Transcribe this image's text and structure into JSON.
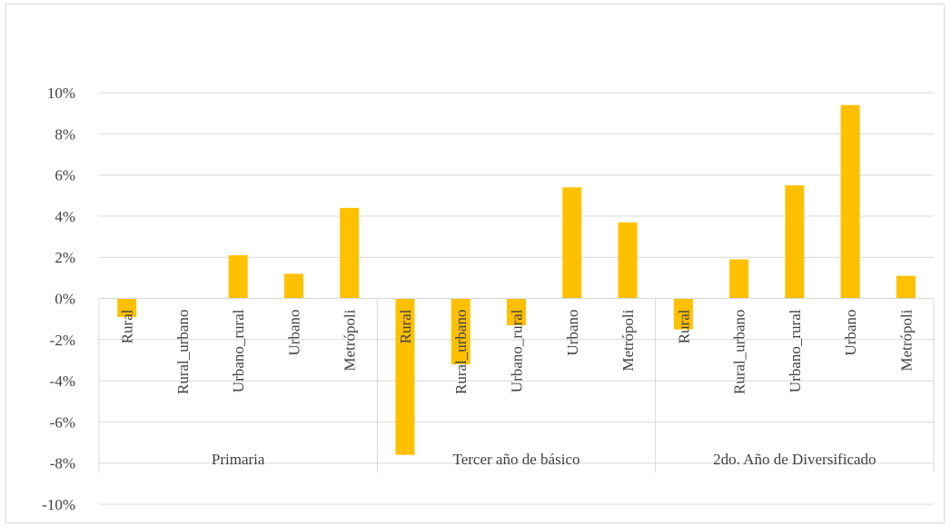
{
  "chart_data": {
    "type": "bar",
    "title": "",
    "xlabel": "",
    "ylabel": "",
    "ylim": [
      -0.1,
      0.1
    ],
    "yticks": [
      0.1,
      0.08,
      0.06,
      0.04,
      0.02,
      0.0,
      -0.02,
      -0.04,
      -0.06,
      -0.08,
      -0.1
    ],
    "ytick_labels": [
      "10%",
      "8%",
      "6%",
      "4%",
      "2%",
      "0%",
      "-2%",
      "-4%",
      "-6%",
      "-8%",
      "-10%"
    ],
    "grid": true,
    "legend": "none",
    "bar_color": "#FFC000",
    "groups": [
      {
        "label": "Primaria",
        "categories": [
          "Rural",
          "Rural_urbano",
          "Urbano_rural",
          "Urbano",
          "Metrópoli"
        ],
        "values": [
          -0.009,
          0.0,
          0.021,
          0.012,
          0.044
        ]
      },
      {
        "label": "Tercer año de básico",
        "categories": [
          "Rural",
          "Rural_urbano",
          "Urbano_rural",
          "Urbano",
          "Metrópoli"
        ],
        "values": [
          -0.076,
          -0.032,
          -0.013,
          0.054,
          0.037
        ]
      },
      {
        "label": "2do. Año de Diversificado",
        "categories": [
          "Rural",
          "Rural_urbano",
          "Urbano_rural",
          "Urbano",
          "Metrópoli"
        ],
        "values": [
          -0.015,
          0.019,
          0.055,
          0.094,
          0.011
        ]
      }
    ]
  }
}
